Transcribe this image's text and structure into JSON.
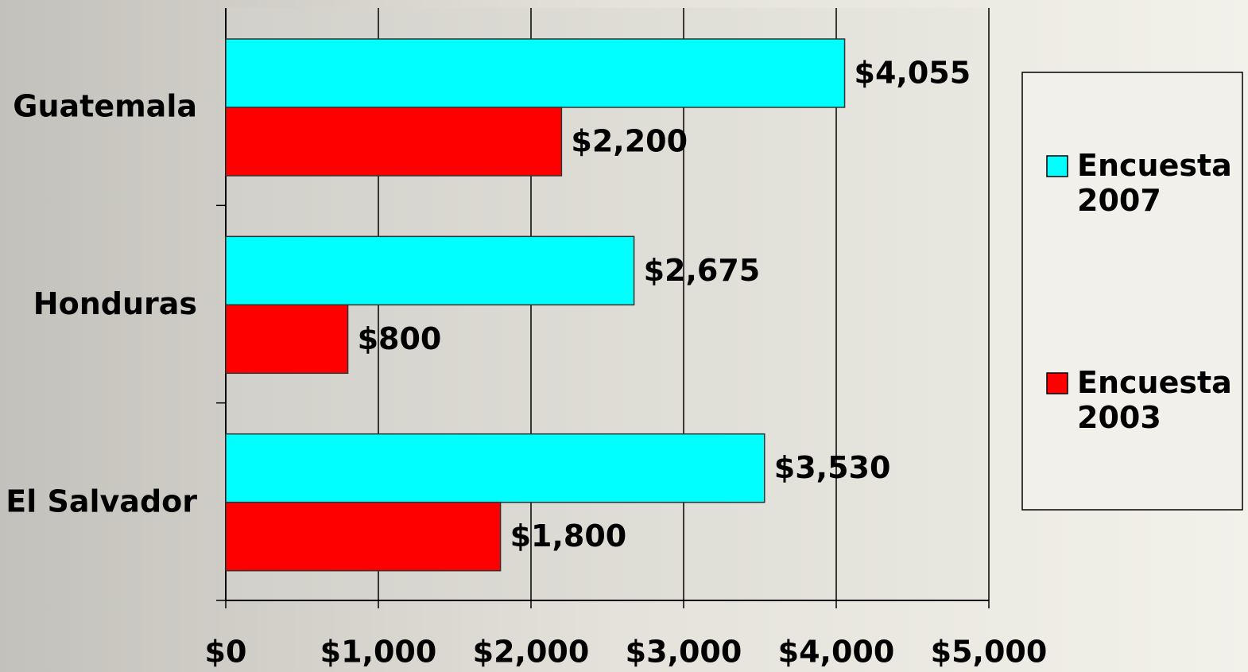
{
  "chart_data": {
    "type": "bar",
    "orientation": "horizontal",
    "categories": [
      "Guatemala",
      "Honduras",
      "El Salvador"
    ],
    "series": [
      {
        "name": "Encuesta 2007",
        "color": "#00ffff",
        "values": [
          4055,
          2675,
          3530
        ],
        "value_labels": [
          "$4,055",
          "$2,675",
          "$3,530"
        ]
      },
      {
        "name": "Encuesta 2003",
        "color": "#ff0000",
        "values": [
          2200,
          800,
          1800
        ],
        "value_labels": [
          "$2,200",
          "$800",
          "$1,800"
        ]
      }
    ],
    "xlim": [
      0,
      5000
    ],
    "xticks": [
      {
        "value": 0,
        "label": "$0"
      },
      {
        "value": 1000,
        "label": "$1,000"
      },
      {
        "value": 2000,
        "label": "$2,000"
      },
      {
        "value": 3000,
        "label": "$3,000"
      },
      {
        "value": 4000,
        "label": "$4,000"
      },
      {
        "value": 5000,
        "label": "$5,000"
      }
    ],
    "grid": true,
    "legend": "right"
  }
}
